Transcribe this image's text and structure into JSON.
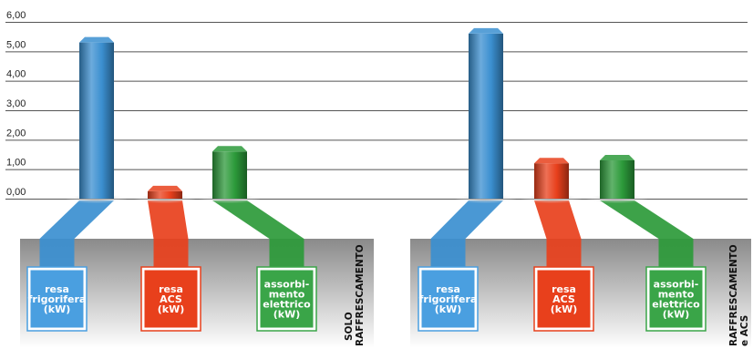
{
  "chart_data": {
    "type": "bar",
    "y_ticks": [
      "6,00",
      "5,00",
      "4,00",
      "3,00",
      "2,00",
      "1,00",
      "0,00"
    ],
    "ylim": [
      0,
      6
    ],
    "grid": true,
    "categories": [
      {
        "lines": [
          "resa",
          "frigorifera",
          "(kW)"
        ],
        "color": "#3b8fd0",
        "box": "#4a9fe0"
      },
      {
        "lines": [
          "resa",
          "ACS",
          "(kW)"
        ],
        "color": "#e8401c",
        "box": "#e8401c"
      },
      {
        "lines": [
          "assorbi-",
          "mento",
          "elettrico",
          "(kW)"
        ],
        "color": "#2c9a3a",
        "box": "#3aa548"
      }
    ],
    "groups": [
      {
        "label_lines": [
          "SOLO",
          "RAFFRESCAMENTO"
        ],
        "values": [
          5.3,
          0.25,
          1.6
        ]
      },
      {
        "label_lines": [
          "RAFFRESCAMENTO",
          "e ACS"
        ],
        "values": [
          5.6,
          1.2,
          1.3
        ]
      }
    ]
  }
}
